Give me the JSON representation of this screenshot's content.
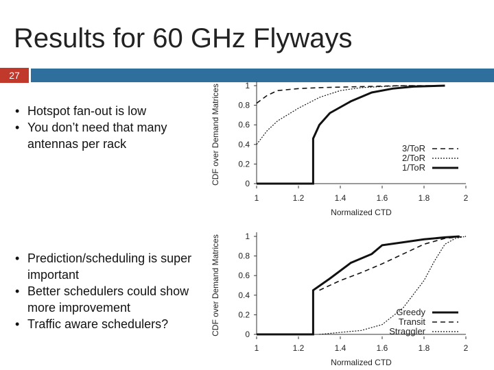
{
  "slide": {
    "title": "Results for 60 GHz Flyways",
    "number": "27",
    "bullets_top": [
      "Hotspot fan-out is low",
      "You don’t need that many antennas per rack"
    ],
    "bullets_bottom": [
      "Prediction/scheduling is super important",
      "Better schedulers could show more improvement",
      "Traffic aware schedulers?"
    ]
  },
  "chart_data": [
    {
      "type": "line",
      "xlabel": "Normalized CTD",
      "ylabel": "CDF over Demand Matrices",
      "xlim": [
        1,
        2
      ],
      "ylim": [
        0,
        1
      ],
      "xticks": [
        "1",
        "1.2",
        "1.4",
        "1.6",
        "1.8",
        "2"
      ],
      "yticks": [
        "0",
        "0.2",
        "0.4",
        "0.6",
        "0.8",
        "1"
      ],
      "legend_position": "center-right",
      "series": [
        {
          "name": "3/ToR",
          "style": "dashed",
          "points": [
            [
              1.0,
              0.82
            ],
            [
              1.05,
              0.9
            ],
            [
              1.1,
              0.95
            ],
            [
              1.2,
              0.97
            ],
            [
              1.3,
              0.98
            ],
            [
              1.5,
              0.99
            ],
            [
              1.7,
              1.0
            ],
            [
              1.9,
              1.0
            ]
          ]
        },
        {
          "name": "2/ToR",
          "style": "dotted",
          "points": [
            [
              1.0,
              0.4
            ],
            [
              1.05,
              0.54
            ],
            [
              1.1,
              0.64
            ],
            [
              1.2,
              0.77
            ],
            [
              1.3,
              0.88
            ],
            [
              1.4,
              0.95
            ],
            [
              1.5,
              0.98
            ],
            [
              1.6,
              0.99
            ],
            [
              1.7,
              1.0
            ],
            [
              1.9,
              1.0
            ]
          ]
        },
        {
          "name": "1/ToR",
          "style": "solid",
          "points": [
            [
              1.0,
              0.0
            ],
            [
              1.27,
              0.0
            ],
            [
              1.27,
              0.46
            ],
            [
              1.3,
              0.6
            ],
            [
              1.35,
              0.72
            ],
            [
              1.45,
              0.84
            ],
            [
              1.55,
              0.93
            ],
            [
              1.65,
              0.97
            ],
            [
              1.75,
              0.99
            ],
            [
              1.9,
              1.0
            ]
          ]
        }
      ]
    },
    {
      "type": "line",
      "xlabel": "Normalized CTD",
      "ylabel": "CDF over Demand Matrices",
      "xlim": [
        1,
        2
      ],
      "ylim": [
        0,
        1
      ],
      "xticks": [
        "1",
        "1.2",
        "1.4",
        "1.6",
        "1.8",
        "2"
      ],
      "yticks": [
        "0",
        "0.2",
        "0.4",
        "0.6",
        "0.8",
        "1"
      ],
      "legend_position": "bottom-right",
      "series": [
        {
          "name": "Greedy",
          "style": "solid",
          "points": [
            [
              1.0,
              0.0
            ],
            [
              1.27,
              0.0
            ],
            [
              1.27,
              0.45
            ],
            [
              1.35,
              0.57
            ],
            [
              1.45,
              0.73
            ],
            [
              1.55,
              0.82
            ],
            [
              1.6,
              0.91
            ],
            [
              1.7,
              0.94
            ],
            [
              1.8,
              0.97
            ],
            [
              1.9,
              0.99
            ],
            [
              1.97,
              1.0
            ]
          ]
        },
        {
          "name": "Transit",
          "style": "dashed",
          "points": [
            [
              1.3,
              0.45
            ],
            [
              1.4,
              0.55
            ],
            [
              1.5,
              0.63
            ],
            [
              1.6,
              0.72
            ],
            [
              1.7,
              0.82
            ],
            [
              1.8,
              0.92
            ],
            [
              1.9,
              0.98
            ],
            [
              2.0,
              1.0
            ]
          ]
        },
        {
          "name": "Straggler",
          "style": "dotted",
          "points": [
            [
              1.3,
              0.0
            ],
            [
              1.5,
              0.04
            ],
            [
              1.6,
              0.1
            ],
            [
              1.7,
              0.27
            ],
            [
              1.8,
              0.55
            ],
            [
              1.85,
              0.75
            ],
            [
              1.9,
              0.92
            ],
            [
              1.95,
              0.98
            ],
            [
              2.0,
              1.0
            ]
          ]
        }
      ]
    }
  ]
}
